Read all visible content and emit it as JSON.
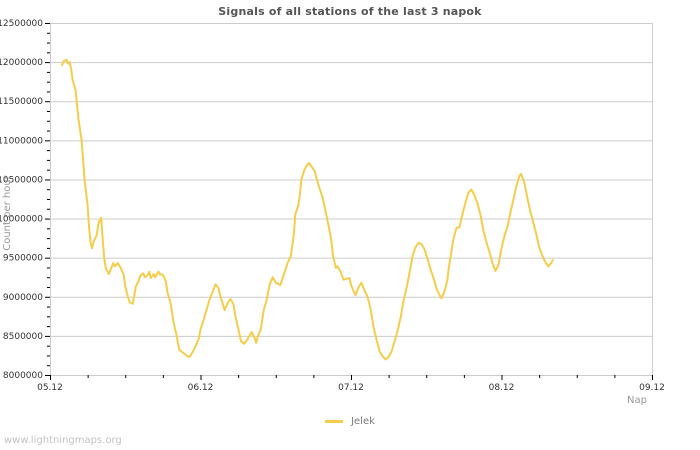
{
  "page": {
    "title": "Signals of all stations of the last 3 napok",
    "watermark": "www.lightningmaps.org"
  },
  "colors": {
    "line": "#f5cd4b",
    "grid": "#cccccc",
    "plot_border": "#cccccc",
    "tick": "#000000",
    "tick_label": "#333333",
    "axis_title": "#999999",
    "title": "#555555",
    "legend_text": "#7a7a7a",
    "watermark": "#c3c3c3",
    "background": "#ffffff"
  },
  "chart_data": {
    "type": "line",
    "title": "Signals of all stations of the last 3 napok",
    "xlabel": "Nap",
    "ylabel": "Count per hour",
    "x_tick_labels": [
      "05.12",
      "06.12",
      "07.12",
      "08.12",
      "09.12"
    ],
    "x_range_days": [
      0,
      4
    ],
    "x_minor_step_days": 0.25,
    "ylim": [
      8000000,
      12500000
    ],
    "y_major_step": 500000,
    "y_minor_step": 125000,
    "grid": "horizontal-only",
    "legend": {
      "position": "bottom-center",
      "entries": [
        "Jelek"
      ]
    },
    "series": [
      {
        "name": "Jelek",
        "color": "#f5cd4b",
        "points": [
          [
            0.08,
            11960000
          ],
          [
            0.09,
            12010000
          ],
          [
            0.11,
            12030000
          ],
          [
            0.12,
            11980000
          ],
          [
            0.13,
            12000000
          ],
          [
            0.14,
            11920000
          ],
          [
            0.15,
            11770000
          ],
          [
            0.17,
            11640000
          ],
          [
            0.18,
            11440000
          ],
          [
            0.19,
            11260000
          ],
          [
            0.21,
            11000000
          ],
          [
            0.22,
            10750000
          ],
          [
            0.23,
            10490000
          ],
          [
            0.25,
            10170000
          ],
          [
            0.26,
            9880000
          ],
          [
            0.27,
            9690000
          ],
          [
            0.28,
            9620000
          ],
          [
            0.29,
            9700000
          ],
          [
            0.31,
            9790000
          ],
          [
            0.32,
            9920000
          ],
          [
            0.33,
            9980000
          ],
          [
            0.34,
            10010000
          ],
          [
            0.35,
            9730000
          ],
          [
            0.36,
            9500000
          ],
          [
            0.37,
            9370000
          ],
          [
            0.39,
            9290000
          ],
          [
            0.42,
            9430000
          ],
          [
            0.43,
            9390000
          ],
          [
            0.45,
            9430000
          ],
          [
            0.47,
            9370000
          ],
          [
            0.49,
            9280000
          ],
          [
            0.5,
            9130000
          ],
          [
            0.52,
            8980000
          ],
          [
            0.53,
            8930000
          ],
          [
            0.55,
            8910000
          ],
          [
            0.56,
            9020000
          ],
          [
            0.57,
            9130000
          ],
          [
            0.59,
            9210000
          ],
          [
            0.6,
            9270000
          ],
          [
            0.62,
            9300000
          ],
          [
            0.63,
            9250000
          ],
          [
            0.65,
            9280000
          ],
          [
            0.66,
            9320000
          ],
          [
            0.67,
            9240000
          ],
          [
            0.69,
            9290000
          ],
          [
            0.7,
            9250000
          ],
          [
            0.72,
            9320000
          ],
          [
            0.73,
            9290000
          ],
          [
            0.75,
            9280000
          ],
          [
            0.76,
            9240000
          ],
          [
            0.77,
            9190000
          ],
          [
            0.78,
            9060000
          ],
          [
            0.8,
            8930000
          ],
          [
            0.81,
            8810000
          ],
          [
            0.82,
            8680000
          ],
          [
            0.84,
            8520000
          ],
          [
            0.85,
            8410000
          ],
          [
            0.86,
            8320000
          ],
          [
            0.88,
            8290000
          ],
          [
            0.9,
            8260000
          ],
          [
            0.92,
            8230000
          ],
          [
            0.93,
            8240000
          ],
          [
            0.95,
            8300000
          ],
          [
            0.97,
            8380000
          ],
          [
            0.99,
            8470000
          ],
          [
            1.0,
            8580000
          ],
          [
            1.02,
            8700000
          ],
          [
            1.04,
            8830000
          ],
          [
            1.06,
            8960000
          ],
          [
            1.08,
            9060000
          ],
          [
            1.1,
            9160000
          ],
          [
            1.12,
            9110000
          ],
          [
            1.13,
            9020000
          ],
          [
            1.16,
            8830000
          ],
          [
            1.18,
            8920000
          ],
          [
            1.19,
            8950000
          ],
          [
            1.2,
            8970000
          ],
          [
            1.22,
            8900000
          ],
          [
            1.23,
            8770000
          ],
          [
            1.25,
            8600000
          ],
          [
            1.27,
            8430000
          ],
          [
            1.29,
            8400000
          ],
          [
            1.31,
            8450000
          ],
          [
            1.34,
            8550000
          ],
          [
            1.36,
            8470000
          ],
          [
            1.37,
            8410000
          ],
          [
            1.38,
            8490000
          ],
          [
            1.4,
            8580000
          ],
          [
            1.41,
            8700000
          ],
          [
            1.42,
            8830000
          ],
          [
            1.44,
            8960000
          ],
          [
            1.45,
            9060000
          ],
          [
            1.46,
            9160000
          ],
          [
            1.48,
            9250000
          ],
          [
            1.5,
            9180000
          ],
          [
            1.53,
            9150000
          ],
          [
            1.56,
            9320000
          ],
          [
            1.58,
            9440000
          ],
          [
            1.6,
            9520000
          ],
          [
            1.62,
            9790000
          ],
          [
            1.63,
            10050000
          ],
          [
            1.65,
            10170000
          ],
          [
            1.66,
            10300000
          ],
          [
            1.67,
            10490000
          ],
          [
            1.69,
            10620000
          ],
          [
            1.7,
            10660000
          ],
          [
            1.72,
            10710000
          ],
          [
            1.74,
            10660000
          ],
          [
            1.76,
            10600000
          ],
          [
            1.77,
            10520000
          ],
          [
            1.79,
            10390000
          ],
          [
            1.81,
            10280000
          ],
          [
            1.83,
            10100000
          ],
          [
            1.85,
            9920000
          ],
          [
            1.87,
            9720000
          ],
          [
            1.88,
            9530000
          ],
          [
            1.9,
            9370000
          ],
          [
            1.91,
            9390000
          ],
          [
            1.93,
            9320000
          ],
          [
            1.95,
            9220000
          ],
          [
            1.97,
            9230000
          ],
          [
            1.99,
            9240000
          ],
          [
            2.0,
            9150000
          ],
          [
            2.03,
            9020000
          ],
          [
            2.05,
            9120000
          ],
          [
            2.07,
            9180000
          ],
          [
            2.09,
            9080000
          ],
          [
            2.11,
            9000000
          ],
          [
            2.13,
            8840000
          ],
          [
            2.15,
            8610000
          ],
          [
            2.17,
            8450000
          ],
          [
            2.19,
            8300000
          ],
          [
            2.21,
            8240000
          ],
          [
            2.23,
            8200000
          ],
          [
            2.25,
            8230000
          ],
          [
            2.27,
            8300000
          ],
          [
            2.29,
            8430000
          ],
          [
            2.31,
            8570000
          ],
          [
            2.33,
            8740000
          ],
          [
            2.35,
            8960000
          ],
          [
            2.37,
            9120000
          ],
          [
            2.39,
            9320000
          ],
          [
            2.41,
            9530000
          ],
          [
            2.43,
            9640000
          ],
          [
            2.45,
            9690000
          ],
          [
            2.47,
            9670000
          ],
          [
            2.49,
            9600000
          ],
          [
            2.51,
            9470000
          ],
          [
            2.53,
            9340000
          ],
          [
            2.55,
            9230000
          ],
          [
            2.57,
            9090000
          ],
          [
            2.6,
            8980000
          ],
          [
            2.62,
            9060000
          ],
          [
            2.64,
            9210000
          ],
          [
            2.65,
            9370000
          ],
          [
            2.68,
            9730000
          ],
          [
            2.7,
            9880000
          ],
          [
            2.72,
            9890000
          ],
          [
            2.74,
            10050000
          ],
          [
            2.76,
            10200000
          ],
          [
            2.78,
            10330000
          ],
          [
            2.8,
            10370000
          ],
          [
            2.82,
            10300000
          ],
          [
            2.84,
            10200000
          ],
          [
            2.86,
            10050000
          ],
          [
            2.88,
            9850000
          ],
          [
            2.9,
            9700000
          ],
          [
            2.92,
            9570000
          ],
          [
            2.94,
            9430000
          ],
          [
            2.96,
            9330000
          ],
          [
            2.98,
            9410000
          ],
          [
            3.0,
            9620000
          ],
          [
            3.02,
            9780000
          ],
          [
            3.04,
            9900000
          ],
          [
            3.06,
            10080000
          ],
          [
            3.08,
            10250000
          ],
          [
            3.1,
            10420000
          ],
          [
            3.12,
            10550000
          ],
          [
            3.13,
            10570000
          ],
          [
            3.15,
            10470000
          ],
          [
            3.17,
            10280000
          ],
          [
            3.19,
            10100000
          ],
          [
            3.21,
            9960000
          ],
          [
            3.23,
            9810000
          ],
          [
            3.25,
            9640000
          ],
          [
            3.27,
            9530000
          ],
          [
            3.29,
            9450000
          ],
          [
            3.31,
            9390000
          ],
          [
            3.33,
            9430000
          ],
          [
            3.34,
            9470000
          ]
        ]
      }
    ]
  }
}
